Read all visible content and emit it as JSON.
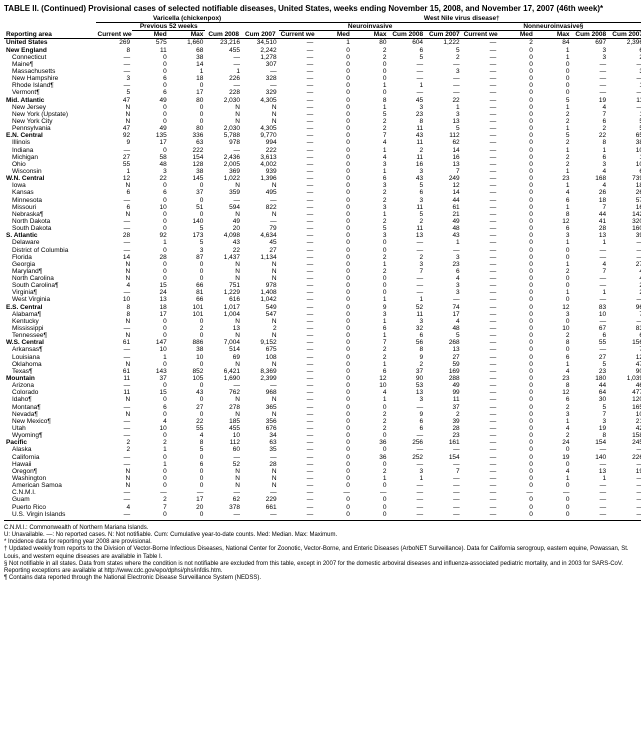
{
  "title": "TABLE II. (Continued) Provisional cases of selected notifiable diseases, United States, weeks ending November 15, 2008, and November 17, 2007 (46th week)*",
  "group_headers": {
    "varicella": "Varicella (chickenpox)",
    "wnv": "West Nile virus disease†",
    "neuro": "Neuroinvasive",
    "nonneuro": "Nonneuroinvasive§"
  },
  "sub_headers": {
    "reporting_area": "Reporting area",
    "current_week": "Current week",
    "previous_52": "Previous 52 weeks",
    "med": "Med",
    "max": "Max",
    "cum_2008": "Cum 2008",
    "cum_2007": "Cum 2007"
  },
  "rows": [
    {
      "area": "United States",
      "bold": true,
      "v": [
        "269",
        "575",
        "1,660",
        "23,216",
        "34,510",
        "—",
        "1",
        "80",
        "604",
        "1,222",
        "—",
        "2",
        "84",
        "697",
        "2,396"
      ]
    },
    {
      "area": "New England",
      "bold": true,
      "v": [
        "8",
        "11",
        "68",
        "455",
        "2,242",
        "—",
        "0",
        "2",
        "6",
        "5",
        "—",
        "0",
        "1",
        "3",
        "6"
      ]
    },
    {
      "area": "Connecticut",
      "v": [
        "—",
        "0",
        "38",
        "—",
        "1,278",
        "—",
        "0",
        "2",
        "5",
        "2",
        "—",
        "0",
        "1",
        "3",
        "2"
      ]
    },
    {
      "area": "Maine¶",
      "v": [
        "—",
        "0",
        "14",
        "—",
        "307",
        "—",
        "0",
        "0",
        "—",
        "—",
        "—",
        "0",
        "0",
        "—",
        "—"
      ]
    },
    {
      "area": "Massachusetts",
      "v": [
        "—",
        "0",
        "1",
        "1",
        "—",
        "—",
        "0",
        "0",
        "—",
        "3",
        "—",
        "0",
        "0",
        "—",
        "3"
      ]
    },
    {
      "area": "New Hampshire",
      "v": [
        "3",
        "6",
        "18",
        "226",
        "328",
        "—",
        "0",
        "0",
        "—",
        "—",
        "—",
        "0",
        "0",
        "—",
        "—"
      ]
    },
    {
      "area": "Rhode Island¶",
      "v": [
        "—",
        "0",
        "0",
        "—",
        "—",
        "—",
        "0",
        "1",
        "1",
        "—",
        "—",
        "0",
        "0",
        "—",
        "1"
      ]
    },
    {
      "area": "Vermont¶",
      "v": [
        "5",
        "6",
        "17",
        "228",
        "329",
        "—",
        "0",
        "0",
        "—",
        "—",
        "—",
        "0",
        "0",
        "—",
        "—"
      ]
    },
    {
      "area": "Mid. Atlantic",
      "bold": true,
      "v": [
        "47",
        "49",
        "80",
        "2,030",
        "4,305",
        "—",
        "0",
        "8",
        "45",
        "22",
        "—",
        "0",
        "5",
        "19",
        "11"
      ]
    },
    {
      "area": "New Jersey",
      "v": [
        "N",
        "0",
        "0",
        "N",
        "N",
        "—",
        "0",
        "1",
        "3",
        "1",
        "—",
        "0",
        "1",
        "4",
        "—"
      ]
    },
    {
      "area": "New York (Upstate)",
      "v": [
        "N",
        "0",
        "0",
        "N",
        "N",
        "—",
        "0",
        "5",
        "23",
        "3",
        "—",
        "0",
        "2",
        "7",
        "1"
      ]
    },
    {
      "area": "New York City",
      "v": [
        "N",
        "0",
        "0",
        "N",
        "N",
        "—",
        "0",
        "2",
        "8",
        "13",
        "—",
        "0",
        "2",
        "6",
        "5"
      ]
    },
    {
      "area": "Pennsylvania",
      "v": [
        "47",
        "49",
        "80",
        "2,030",
        "4,305",
        "—",
        "0",
        "2",
        "11",
        "5",
        "—",
        "0",
        "1",
        "2",
        "5"
      ]
    },
    {
      "area": "E.N. Central",
      "bold": true,
      "v": [
        "92",
        "135",
        "336",
        "5,788",
        "9,770",
        "—",
        "0",
        "7",
        "43",
        "112",
        "—",
        "0",
        "5",
        "22",
        "65"
      ]
    },
    {
      "area": "Illinois",
      "v": [
        "9",
        "17",
        "63",
        "978",
        "994",
        "—",
        "0",
        "4",
        "11",
        "62",
        "—",
        "0",
        "2",
        "8",
        "38"
      ]
    },
    {
      "area": "Indiana",
      "v": [
        "—",
        "0",
        "222",
        "—",
        "222",
        "—",
        "0",
        "1",
        "2",
        "14",
        "—",
        "0",
        "1",
        "1",
        "10"
      ]
    },
    {
      "area": "Michigan",
      "v": [
        "27",
        "58",
        "154",
        "2,436",
        "3,613",
        "—",
        "0",
        "4",
        "11",
        "16",
        "—",
        "0",
        "2",
        "6",
        "1"
      ]
    },
    {
      "area": "Ohio",
      "v": [
        "55",
        "48",
        "128",
        "2,005",
        "4,002",
        "—",
        "0",
        "3",
        "16",
        "13",
        "—",
        "0",
        "2",
        "3",
        "10"
      ]
    },
    {
      "area": "Wisconsin",
      "v": [
        "1",
        "3",
        "38",
        "369",
        "939",
        "—",
        "0",
        "1",
        "3",
        "7",
        "—",
        "0",
        "1",
        "4",
        "6"
      ]
    },
    {
      "area": "W.N. Central",
      "bold": true,
      "v": [
        "12",
        "22",
        "145",
        "1,022",
        "1,396",
        "—",
        "0",
        "6",
        "43",
        "249",
        "—",
        "0",
        "23",
        "168",
        "739"
      ]
    },
    {
      "area": "Iowa",
      "v": [
        "N",
        "0",
        "0",
        "N",
        "N",
        "—",
        "0",
        "3",
        "5",
        "12",
        "—",
        "0",
        "1",
        "4",
        "18"
      ]
    },
    {
      "area": "Kansas",
      "v": [
        "6",
        "6",
        "37",
        "359",
        "495",
        "—",
        "0",
        "2",
        "6",
        "14",
        "—",
        "0",
        "4",
        "26",
        "26"
      ]
    },
    {
      "area": "Minnesota",
      "v": [
        "—",
        "0",
        "0",
        "—",
        "—",
        "—",
        "0",
        "2",
        "3",
        "44",
        "—",
        "0",
        "6",
        "18",
        "57"
      ]
    },
    {
      "area": "Missouri",
      "v": [
        "6",
        "10",
        "51",
        "594",
        "822",
        "—",
        "0",
        "3",
        "11",
        "61",
        "—",
        "0",
        "1",
        "7",
        "16"
      ]
    },
    {
      "area": "Nebraska¶",
      "v": [
        "N",
        "0",
        "0",
        "N",
        "N",
        "—",
        "0",
        "1",
        "5",
        "21",
        "—",
        "0",
        "8",
        "44",
        "142"
      ]
    },
    {
      "area": "North Dakota",
      "v": [
        "—",
        "0",
        "140",
        "49",
        "—",
        "—",
        "0",
        "2",
        "2",
        "49",
        "—",
        "0",
        "12",
        "41",
        "320"
      ]
    },
    {
      "area": "South Dakota",
      "v": [
        "—",
        "0",
        "5",
        "20",
        "79",
        "—",
        "0",
        "5",
        "11",
        "48",
        "—",
        "0",
        "6",
        "28",
        "160"
      ]
    },
    {
      "area": "S. Atlantic",
      "bold": true,
      "v": [
        "28",
        "92",
        "173",
        "4,098",
        "4,634",
        "—",
        "0",
        "3",
        "13",
        "43",
        "—",
        "0",
        "3",
        "13",
        "39"
      ]
    },
    {
      "area": "Delaware",
      "v": [
        "—",
        "1",
        "5",
        "43",
        "45",
        "—",
        "0",
        "0",
        "—",
        "1",
        "—",
        "0",
        "1",
        "1",
        "—"
      ]
    },
    {
      "area": "District of Columbia",
      "v": [
        "—",
        "0",
        "3",
        "22",
        "27",
        "—",
        "0",
        "0",
        "—",
        "—",
        "—",
        "0",
        "0",
        "—",
        "—"
      ]
    },
    {
      "area": "Florida",
      "v": [
        "14",
        "28",
        "87",
        "1,437",
        "1,134",
        "—",
        "0",
        "2",
        "2",
        "3",
        "—",
        "0",
        "0",
        "—",
        "—"
      ]
    },
    {
      "area": "Georgia",
      "v": [
        "N",
        "0",
        "0",
        "N",
        "N",
        "—",
        "0",
        "1",
        "3",
        "23",
        "—",
        "0",
        "1",
        "4",
        "27"
      ]
    },
    {
      "area": "Maryland¶",
      "v": [
        "N",
        "0",
        "0",
        "N",
        "N",
        "—",
        "0",
        "2",
        "7",
        "6",
        "—",
        "0",
        "2",
        "7",
        "4"
      ]
    },
    {
      "area": "North Carolina",
      "v": [
        "N",
        "0",
        "0",
        "N",
        "N",
        "—",
        "0",
        "0",
        "—",
        "4",
        "—",
        "0",
        "0",
        "—",
        "4"
      ]
    },
    {
      "area": "South Carolina¶",
      "v": [
        "4",
        "15",
        "66",
        "751",
        "978",
        "—",
        "0",
        "0",
        "—",
        "3",
        "—",
        "0",
        "0",
        "—",
        "2"
      ]
    },
    {
      "area": "Virginia¶",
      "v": [
        "—",
        "24",
        "81",
        "1,229",
        "1,408",
        "—",
        "0",
        "0",
        "—",
        "3",
        "—",
        "0",
        "1",
        "1",
        "2"
      ]
    },
    {
      "area": "West Virginia",
      "v": [
        "10",
        "13",
        "66",
        "616",
        "1,042",
        "—",
        "0",
        "1",
        "1",
        "—",
        "—",
        "0",
        "0",
        "—",
        "—"
      ]
    },
    {
      "area": "E.S. Central",
      "bold": true,
      "v": [
        "8",
        "18",
        "101",
        "1,017",
        "549",
        "—",
        "0",
        "9",
        "52",
        "74",
        "—",
        "0",
        "12",
        "83",
        "96"
      ]
    },
    {
      "area": "Alabama¶",
      "v": [
        "8",
        "17",
        "101",
        "1,004",
        "547",
        "—",
        "0",
        "3",
        "11",
        "17",
        "—",
        "0",
        "3",
        "10",
        "7"
      ]
    },
    {
      "area": "Kentucky",
      "v": [
        "N",
        "0",
        "0",
        "N",
        "N",
        "—",
        "0",
        "1",
        "3",
        "4",
        "—",
        "0",
        "0",
        "—",
        "—"
      ]
    },
    {
      "area": "Mississippi",
      "v": [
        "—",
        "0",
        "2",
        "13",
        "2",
        "—",
        "0",
        "6",
        "32",
        "48",
        "—",
        "0",
        "10",
        "67",
        "83"
      ]
    },
    {
      "area": "Tennessee¶",
      "v": [
        "N",
        "0",
        "0",
        "N",
        "N",
        "—",
        "0",
        "1",
        "6",
        "5",
        "—",
        "0",
        "2",
        "6",
        "6"
      ]
    },
    {
      "area": "W.S. Central",
      "bold": true,
      "v": [
        "61",
        "147",
        "886",
        "7,004",
        "9,152",
        "—",
        "0",
        "7",
        "56",
        "268",
        "—",
        "0",
        "8",
        "55",
        "156"
      ]
    },
    {
      "area": "Arkansas¶",
      "v": [
        "—",
        "10",
        "38",
        "514",
        "675",
        "—",
        "0",
        "2",
        "8",
        "13",
        "—",
        "0",
        "0",
        "—",
        "7"
      ]
    },
    {
      "area": "Louisiana",
      "v": [
        "—",
        "1",
        "10",
        "69",
        "108",
        "—",
        "0",
        "2",
        "9",
        "27",
        "—",
        "0",
        "6",
        "27",
        "12"
      ]
    },
    {
      "area": "Oklahoma",
      "v": [
        "N",
        "0",
        "0",
        "N",
        "N",
        "—",
        "0",
        "1",
        "2",
        "59",
        "—",
        "0",
        "1",
        "5",
        "47"
      ]
    },
    {
      "area": "Texas¶",
      "v": [
        "61",
        "143",
        "852",
        "6,421",
        "8,369",
        "—",
        "0",
        "6",
        "37",
        "169",
        "—",
        "0",
        "4",
        "23",
        "90"
      ]
    },
    {
      "area": "Mountain",
      "bold": true,
      "v": [
        "11",
        "37",
        "105",
        "1,690",
        "2,399",
        "—",
        "0",
        "12",
        "90",
        "288",
        "—",
        "0",
        "23",
        "180",
        "1,039"
      ]
    },
    {
      "area": "Arizona",
      "v": [
        "—",
        "0",
        "0",
        "—",
        "—",
        "—",
        "0",
        "10",
        "53",
        "49",
        "—",
        "0",
        "8",
        "44",
        "46"
      ]
    },
    {
      "area": "Colorado",
      "v": [
        "11",
        "15",
        "43",
        "762",
        "968",
        "—",
        "0",
        "4",
        "13",
        "99",
        "—",
        "0",
        "12",
        "64",
        "477"
      ]
    },
    {
      "area": "Idaho¶",
      "v": [
        "N",
        "0",
        "0",
        "N",
        "N",
        "—",
        "0",
        "1",
        "3",
        "11",
        "—",
        "0",
        "6",
        "30",
        "120"
      ]
    },
    {
      "area": "Montana¶",
      "v": [
        "—",
        "6",
        "27",
        "278",
        "365",
        "—",
        "0",
        "0",
        "—",
        "37",
        "—",
        "0",
        "2",
        "5",
        "165"
      ]
    },
    {
      "area": "Nevada¶",
      "v": [
        "N",
        "0",
        "0",
        "N",
        "N",
        "—",
        "0",
        "2",
        "9",
        "2",
        "—",
        "0",
        "3",
        "7",
        "10"
      ]
    },
    {
      "area": "New Mexico¶",
      "v": [
        "—",
        "4",
        "22",
        "185",
        "356",
        "—",
        "0",
        "2",
        "6",
        "39",
        "—",
        "0",
        "1",
        "3",
        "21"
      ]
    },
    {
      "area": "Utah",
      "v": [
        "—",
        "10",
        "55",
        "455",
        "676",
        "—",
        "0",
        "2",
        "6",
        "28",
        "—",
        "0",
        "4",
        "19",
        "42"
      ]
    },
    {
      "area": "Wyoming¶",
      "v": [
        "—",
        "0",
        "4",
        "10",
        "34",
        "—",
        "0",
        "0",
        "—",
        "23",
        "—",
        "0",
        "2",
        "8",
        "158"
      ]
    },
    {
      "area": "Pacific",
      "bold": true,
      "v": [
        "2",
        "2",
        "8",
        "112",
        "63",
        "—",
        "0",
        "36",
        "256",
        "161",
        "—",
        "0",
        "24",
        "154",
        "245"
      ]
    },
    {
      "area": "Alaska",
      "v": [
        "2",
        "1",
        "5",
        "60",
        "35",
        "—",
        "0",
        "0",
        "—",
        "—",
        "—",
        "0",
        "0",
        "—",
        "—"
      ]
    },
    {
      "area": "California",
      "v": [
        "—",
        "0",
        "0",
        "—",
        "—",
        "—",
        "0",
        "36",
        "252",
        "154",
        "—",
        "0",
        "19",
        "140",
        "226"
      ]
    },
    {
      "area": "Hawaii",
      "v": [
        "—",
        "1",
        "6",
        "52",
        "28",
        "—",
        "0",
        "0",
        "—",
        "—",
        "—",
        "0",
        "0",
        "—",
        "—"
      ]
    },
    {
      "area": "Oregon¶",
      "v": [
        "N",
        "0",
        "0",
        "N",
        "N",
        "—",
        "0",
        "2",
        "3",
        "7",
        "—",
        "0",
        "4",
        "13",
        "19"
      ]
    },
    {
      "area": "Washington",
      "v": [
        "N",
        "0",
        "0",
        "N",
        "N",
        "—",
        "0",
        "1",
        "1",
        "—",
        "—",
        "0",
        "1",
        "1",
        "—"
      ]
    },
    {
      "area": "American Samoa",
      "v": [
        "N",
        "0",
        "0",
        "N",
        "N",
        "—",
        "0",
        "0",
        "—",
        "—",
        "—",
        "0",
        "0",
        "—",
        "—"
      ]
    },
    {
      "area": "C.N.M.I.",
      "v": [
        "—",
        "—",
        "—",
        "—",
        "—",
        "—",
        "—",
        "—",
        "—",
        "—",
        "—",
        "—",
        "—",
        "—",
        "—"
      ]
    },
    {
      "area": "Guam",
      "v": [
        "—",
        "2",
        "17",
        "62",
        "229",
        "—",
        "0",
        "0",
        "—",
        "—",
        "—",
        "0",
        "0",
        "—",
        "—"
      ]
    },
    {
      "area": "Puerto Rico",
      "v": [
        "4",
        "7",
        "20",
        "378",
        "661",
        "—",
        "0",
        "0",
        "—",
        "—",
        "—",
        "0",
        "0",
        "—",
        "—"
      ]
    },
    {
      "area": "U.S. Virgin Islands",
      "v": [
        "—",
        "0",
        "0",
        "—",
        "—",
        "—",
        "0",
        "0",
        "—",
        "—",
        "—",
        "0",
        "0",
        "—",
        "—"
      ]
    }
  ],
  "footnotes": [
    "C.N.M.I.: Commonwealth of Northern Mariana Islands.",
    "U: Unavailable.  —: No reported cases.  N: Not notifiable.  Cum: Cumulative year-to-date counts.  Med: Median.  Max: Maximum.",
    "* Incidence data for reporting year 2008 are provisional.",
    "† Updated weekly from reports to the Division of Vector-Borne Infectious Diseases, National Center for Zoonotic, Vector-Borne, and Enteric Diseases (ArboNET Surveillance). Data for California serogroup, eastern equine, Powassan, St. Louis, and western equine diseases are available in Table I.",
    "§ Not notifiable in all states. Data from states where the condition is not notifiable are excluded from this table, except in 2007 for the domestic arboviral diseases and influenza-associated pediatric mortality, and in 2003 for SARS-CoV. Reporting exceptions are available at http://www.cdc.gov/epo/dphsi/phs/infdis.htm.",
    "¶ Contains data reported through the National Electronic Disease Surveillance System (NEDSS)."
  ]
}
